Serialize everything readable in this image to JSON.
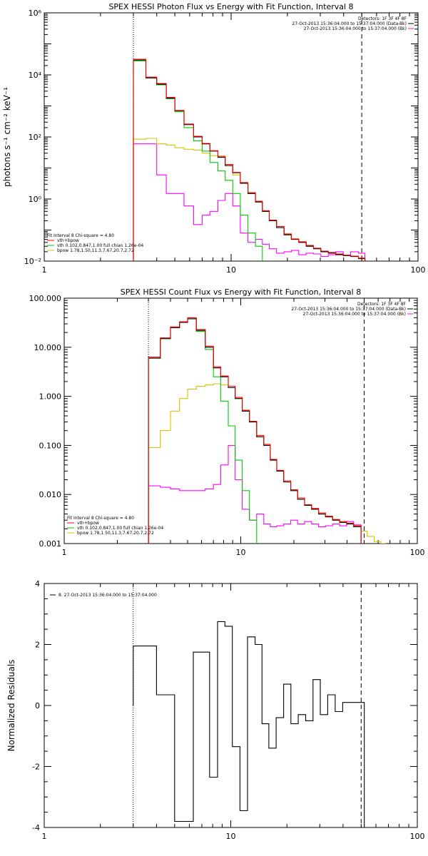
{
  "colors": {
    "data": "#000000",
    "total": "#ff0000",
    "vth": "#00cc00",
    "bpow": "#d4c400",
    "background": "#ff00ff",
    "axis": "#000000"
  },
  "chart_data": [
    {
      "type": "line",
      "title": "SPEX HESSI Photon Flux vs Energy with Fit Function, Interval 8",
      "ylabel": "photons s⁻¹ cm⁻² keV⁻¹",
      "xscale": "log",
      "yscale": "log",
      "xlim": [
        1,
        100
      ],
      "ylim": [
        0.01,
        1000000
      ],
      "x_ticks": [
        "1",
        "10",
        "100"
      ],
      "y_ticks": [
        "10⁻²",
        "10⁰",
        "10²",
        "10⁴",
        "10⁶"
      ],
      "legend_right": [
        "Detectors: 1F 3F 4F 8F",
        "27-Oct-2013 15:36:04.000 to 15:37:04.000 (Data-Bk)",
        "27-Oct-2013 15:36:04.000 to 15:37:04.000 (Bk)"
      ],
      "legend_left_title": "Fit Interval 8   Chi-square = 4.80",
      "legend_left": [
        "vth+bpow",
        "vth 0.102,0.847,1.00  full chian 1.26e-04",
        "bpow 1.78,1.50,11.3,7.67,20.7,2.72"
      ],
      "edges": [
        3.0,
        3.5,
        4.0,
        4.5,
        5.0,
        5.6,
        6.3,
        7.0,
        7.7,
        8.5,
        9.3,
        10.2,
        11.2,
        12.3,
        13.5,
        14.7,
        16.0,
        17.5,
        19.2,
        21.0,
        23.0,
        25.2,
        27.6,
        30.2,
        33.1,
        36.3,
        39.8,
        43.6,
        48.0,
        52.0
      ],
      "series": [
        {
          "name": "data",
          "style": "data",
          "values": [
            30000,
            8000,
            5000,
            1800,
            700,
            250,
            100,
            60,
            35,
            22,
            12,
            7,
            3.2,
            1.5,
            0.8,
            0.4,
            0.2,
            0.12,
            0.07,
            0.05,
            0.04,
            0.03,
            0.025,
            0.02,
            0.018,
            0.016,
            0.015,
            0.014,
            0.012
          ]
        },
        {
          "name": "vth+bpow",
          "style": "total",
          "values": [
            32000,
            8500,
            5300,
            1900,
            720,
            260,
            105,
            62,
            36,
            24,
            13,
            7.2,
            3.4,
            1.6,
            0.85,
            0.42,
            0.21,
            0.13,
            0.075,
            0.052,
            0.042,
            0.032,
            0.026,
            0.021,
            0.019,
            0.017,
            0.0155,
            0.0145,
            0.0125
          ]
        },
        {
          "name": "vth 0.102,0.847,1.00  full chian 1.26e-04",
          "style": "vth",
          "values": [
            28000,
            8000,
            4800,
            1700,
            650,
            200,
            75,
            35,
            15,
            8,
            4,
            1.5,
            0.3,
            0.08,
            0.03,
            0.009
          ]
        },
        {
          "name": "bpow 1.78,1.50,11.3,7.67,20.7,2.72",
          "style": "bpow",
          "values": [
            85,
            90,
            60,
            55,
            45,
            40,
            38,
            30,
            25,
            23,
            12,
            6,
            3.2,
            1.5,
            0.8,
            0.4,
            0.2,
            0.12,
            0.07,
            0.05,
            0.04,
            0.03,
            0.025,
            0.02,
            0.018,
            0.016,
            0.015,
            0.014,
            0.012
          ]
        },
        {
          "name": "Bk",
          "style": "background",
          "values": [
            60,
            60,
            6,
            1.5,
            1.5,
            0.6,
            0.15,
            0.3,
            0.4,
            0.9,
            1.5,
            0.6,
            0.08,
            0.04,
            0.05,
            0.035,
            0.025,
            0.018,
            0.02,
            0.022,
            0.016,
            0.018,
            0.017,
            0.014,
            0.016,
            0.02,
            0.015,
            0.02,
            0.018
          ]
        }
      ]
    },
    {
      "type": "line",
      "title": "SPEX HESSI Count Flux vs Energy with Fit Function, Interval 8",
      "ylabel": "",
      "xscale": "log",
      "yscale": "log",
      "xlim": [
        1,
        100
      ],
      "ylim": [
        0.001,
        100
      ],
      "x_ticks": [
        "1",
        "10",
        "100"
      ],
      "y_ticks": [
        "0.001",
        "0.010",
        "0.100",
        "1.000",
        "10.000",
        "100.000"
      ],
      "legend_right": [
        "Detectors: 1F 3F 4F 8F",
        "27-Oct-2013 15:36:04.000 to 15:37:04.000 (Data-Bk)",
        "27-Oct-2013 15:36:04.000 to 15:37:04.000 (Bk)"
      ],
      "legend_left_title": "Fit Interval 8   Chi-square = 4.80",
      "legend_left": [
        "vth+bpow",
        "vth 0.102,0.847,1.00  full chian 1.26e-04",
        "bpow 1.78,1.50,11.3,7.67,20.7,2.72"
      ],
      "edges": [
        3.0,
        3.5,
        4.0,
        4.5,
        5.0,
        5.6,
        6.3,
        7.0,
        7.7,
        8.5,
        9.3,
        10.2,
        11.2,
        12.3,
        13.5,
        14.7,
        16.0,
        17.5,
        19.2,
        21.0,
        23.0,
        25.2,
        27.6,
        30.2,
        33.1,
        36.3,
        39.8,
        43.6,
        48.0,
        52.0,
        57.0,
        62.0,
        66.0
      ],
      "series": [
        {
          "name": "data",
          "style": "data",
          "values": [
            6,
            15,
            25,
            32,
            38,
            22,
            10,
            3.8,
            2.5,
            1.5,
            0.9,
            0.5,
            0.3,
            0.15,
            0.1,
            0.05,
            0.03,
            0.018,
            0.012,
            0.008,
            0.006,
            0.005,
            0.004,
            0.0035,
            0.003,
            0.0027,
            0.0025,
            0.0022
          ]
        },
        {
          "name": "vth+bpow",
          "style": "total",
          "values": [
            6.3,
            15.5,
            26,
            33,
            40,
            23,
            10.5,
            4,
            2.6,
            1.6,
            0.95,
            0.52,
            0.31,
            0.16,
            0.105,
            0.052,
            0.031,
            0.019,
            0.0125,
            0.0085,
            0.0062,
            0.0052,
            0.0042,
            0.0036,
            0.0031,
            0.0028,
            0.0026,
            0.0023
          ]
        },
        {
          "name": "vth 0.102,0.847,1.00  full chian 1.26e-04",
          "style": "vth",
          "values": [
            6,
            15,
            25,
            32,
            38,
            21,
            9,
            2.5,
            0.8,
            0.25,
            0.05,
            0.012,
            0.003
          ]
        },
        {
          "name": "bpow 1.78,1.50,11.3,7.67,20.7,2.72",
          "style": "bpow",
          "values": [
            0.09,
            0.2,
            0.5,
            0.9,
            1.4,
            1.6,
            1.7,
            1.8,
            1.7,
            1.5,
            0.9,
            0.5,
            0.3,
            0.15,
            0.1,
            0.05,
            0.03,
            0.018,
            0.012,
            0.008,
            0.006,
            0.005,
            0.004,
            0.0035,
            0.003,
            0.0027,
            0.0025,
            0.0022,
            0.0018,
            0.0014,
            0.0011,
            0.001
          ]
        },
        {
          "name": "Bk",
          "style": "background",
          "values": [
            0.015,
            0.014,
            0.013,
            0.012,
            0.012,
            0.012,
            0.013,
            0.016,
            0.04,
            0.1,
            0.02,
            0.005,
            0.003,
            0.004,
            0.0025,
            0.0022,
            0.0023,
            0.0025,
            0.003,
            0.0025,
            0.0028,
            0.0025,
            0.0022,
            0.0023,
            0.0025,
            0.0023,
            0.0028,
            0.0024
          ]
        }
      ]
    },
    {
      "type": "line",
      "title": "",
      "ylabel": "Normalized Residuals",
      "xscale": "log",
      "yscale": "linear",
      "xlim": [
        1,
        100
      ],
      "ylim": [
        -4,
        4
      ],
      "x_ticks": [
        "1",
        "10",
        "100"
      ],
      "y_ticks": [
        "-4",
        "-2",
        "0",
        "2",
        "4"
      ],
      "legend_left_title": "8. 27-Oct-2013 15:36:04.000 to 15:37:04.000",
      "edges": [
        3.0,
        3.5,
        4.0,
        4.5,
        5.0,
        5.6,
        6.3,
        7.0,
        7.7,
        8.5,
        9.3,
        10.2,
        11.2,
        12.3,
        13.5,
        14.7,
        16.0,
        17.5,
        19.2,
        21.0,
        23.0,
        25.2,
        27.6,
        30.2,
        33.1,
        36.3,
        39.8,
        43.6,
        48.0,
        52.0
      ],
      "series": [
        {
          "name": "8. 27-Oct-2013 15:36:04.000 to 15:37:04.000",
          "style": "data",
          "values": [
            1.95,
            1.95,
            0.35,
            0.35,
            -3.8,
            -3.8,
            1.75,
            1.75,
            -2.35,
            2.75,
            2.6,
            -1.35,
            -3.45,
            2.25,
            2.0,
            -0.6,
            -1.4,
            -0.4,
            0.7,
            -0.6,
            -0.3,
            -0.5,
            0.85,
            -0.3,
            0.35,
            -0.2,
            0.1,
            0.1,
            0.1
          ]
        }
      ]
    }
  ]
}
